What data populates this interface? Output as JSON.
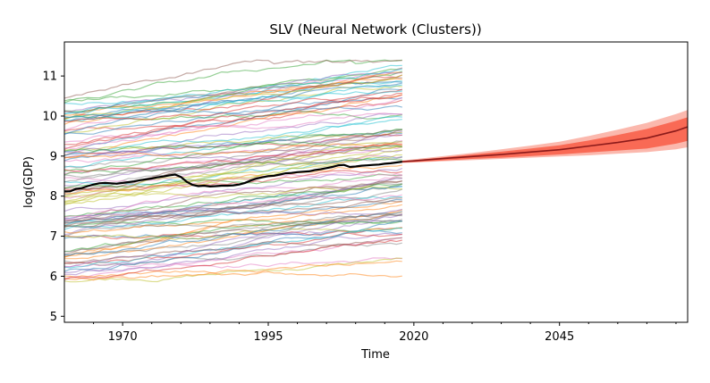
{
  "chart_data": {
    "type": "line",
    "title": "SLV (Neural Network (Clusters))",
    "xlabel": "Time",
    "ylabel": "log(GDP)",
    "xlim": [
      1960,
      2067
    ],
    "ylim": [
      4.85,
      11.85
    ],
    "x_ticks": [
      1970,
      1995,
      2020,
      2045
    ],
    "y_ticks": [
      5,
      6,
      7,
      8,
      9,
      10,
      11
    ],
    "grid": false,
    "legend": "none",
    "history_range": [
      1960,
      2018
    ],
    "focus_series": {
      "x": [
        1960,
        1961,
        1962,
        1963,
        1964,
        1965,
        1966,
        1967,
        1968,
        1969,
        1970,
        1971,
        1972,
        1973,
        1974,
        1975,
        1976,
        1977,
        1978,
        1979,
        1980,
        1981,
        1982,
        1983,
        1984,
        1985,
        1986,
        1987,
        1988,
        1989,
        1990,
        1991,
        1992,
        1993,
        1994,
        1995,
        1996,
        1997,
        1998,
        1999,
        2000,
        2001,
        2002,
        2003,
        2004,
        2005,
        2006,
        2007,
        2008,
        2009,
        2010,
        2011,
        2012,
        2013,
        2014,
        2015,
        2016,
        2017,
        2018
      ],
      "y": [
        8.12,
        8.12,
        8.18,
        8.2,
        8.25,
        8.29,
        8.32,
        8.33,
        8.32,
        8.31,
        8.33,
        8.35,
        8.37,
        8.4,
        8.42,
        8.44,
        8.47,
        8.49,
        8.52,
        8.54,
        8.48,
        8.36,
        8.28,
        8.25,
        8.26,
        8.24,
        8.25,
        8.26,
        8.26,
        8.27,
        8.29,
        8.33,
        8.39,
        8.44,
        8.47,
        8.5,
        8.51,
        8.54,
        8.57,
        8.58,
        8.6,
        8.61,
        8.62,
        8.65,
        8.67,
        8.7,
        8.73,
        8.77,
        8.78,
        8.73,
        8.74,
        8.76,
        8.77,
        8.78,
        8.79,
        8.81,
        8.82,
        8.84,
        8.86
      ]
    },
    "forecast": {
      "x": [
        2018,
        2020,
        2025,
        2030,
        2035,
        2040,
        2045,
        2050,
        2055,
        2060,
        2065,
        2067
      ],
      "median": [
        8.86,
        8.88,
        8.94,
        8.99,
        9.04,
        9.1,
        9.16,
        9.25,
        9.34,
        9.45,
        9.63,
        9.73
      ],
      "inner_lower": [
        8.84,
        8.85,
        8.89,
        8.93,
        8.96,
        9.0,
        9.04,
        9.09,
        9.14,
        9.19,
        9.31,
        9.38
      ],
      "inner_upper": [
        8.88,
        8.9,
        8.97,
        9.04,
        9.11,
        9.19,
        9.27,
        9.39,
        9.53,
        9.68,
        9.88,
        9.97
      ],
      "outer_lower": [
        8.83,
        8.84,
        8.87,
        8.9,
        8.93,
        8.96,
        8.99,
        9.02,
        9.06,
        9.1,
        9.17,
        9.22
      ],
      "outer_upper": [
        8.89,
        8.92,
        9.0,
        9.08,
        9.17,
        9.26,
        9.36,
        9.5,
        9.66,
        9.83,
        10.05,
        10.15
      ]
    },
    "colors": {
      "focus": "#000000",
      "forecast_line": "#8b1a1a",
      "inner_band": "#f96a55",
      "outer_band": "#fbb8ad"
    },
    "background_series_count": 110,
    "background_palette": [
      "#1f77b4",
      "#ff7f0e",
      "#2ca02c",
      "#d62728",
      "#9467bd",
      "#8c564b",
      "#e377c2",
      "#7f7f7f",
      "#bcbd22",
      "#17becf"
    ]
  }
}
